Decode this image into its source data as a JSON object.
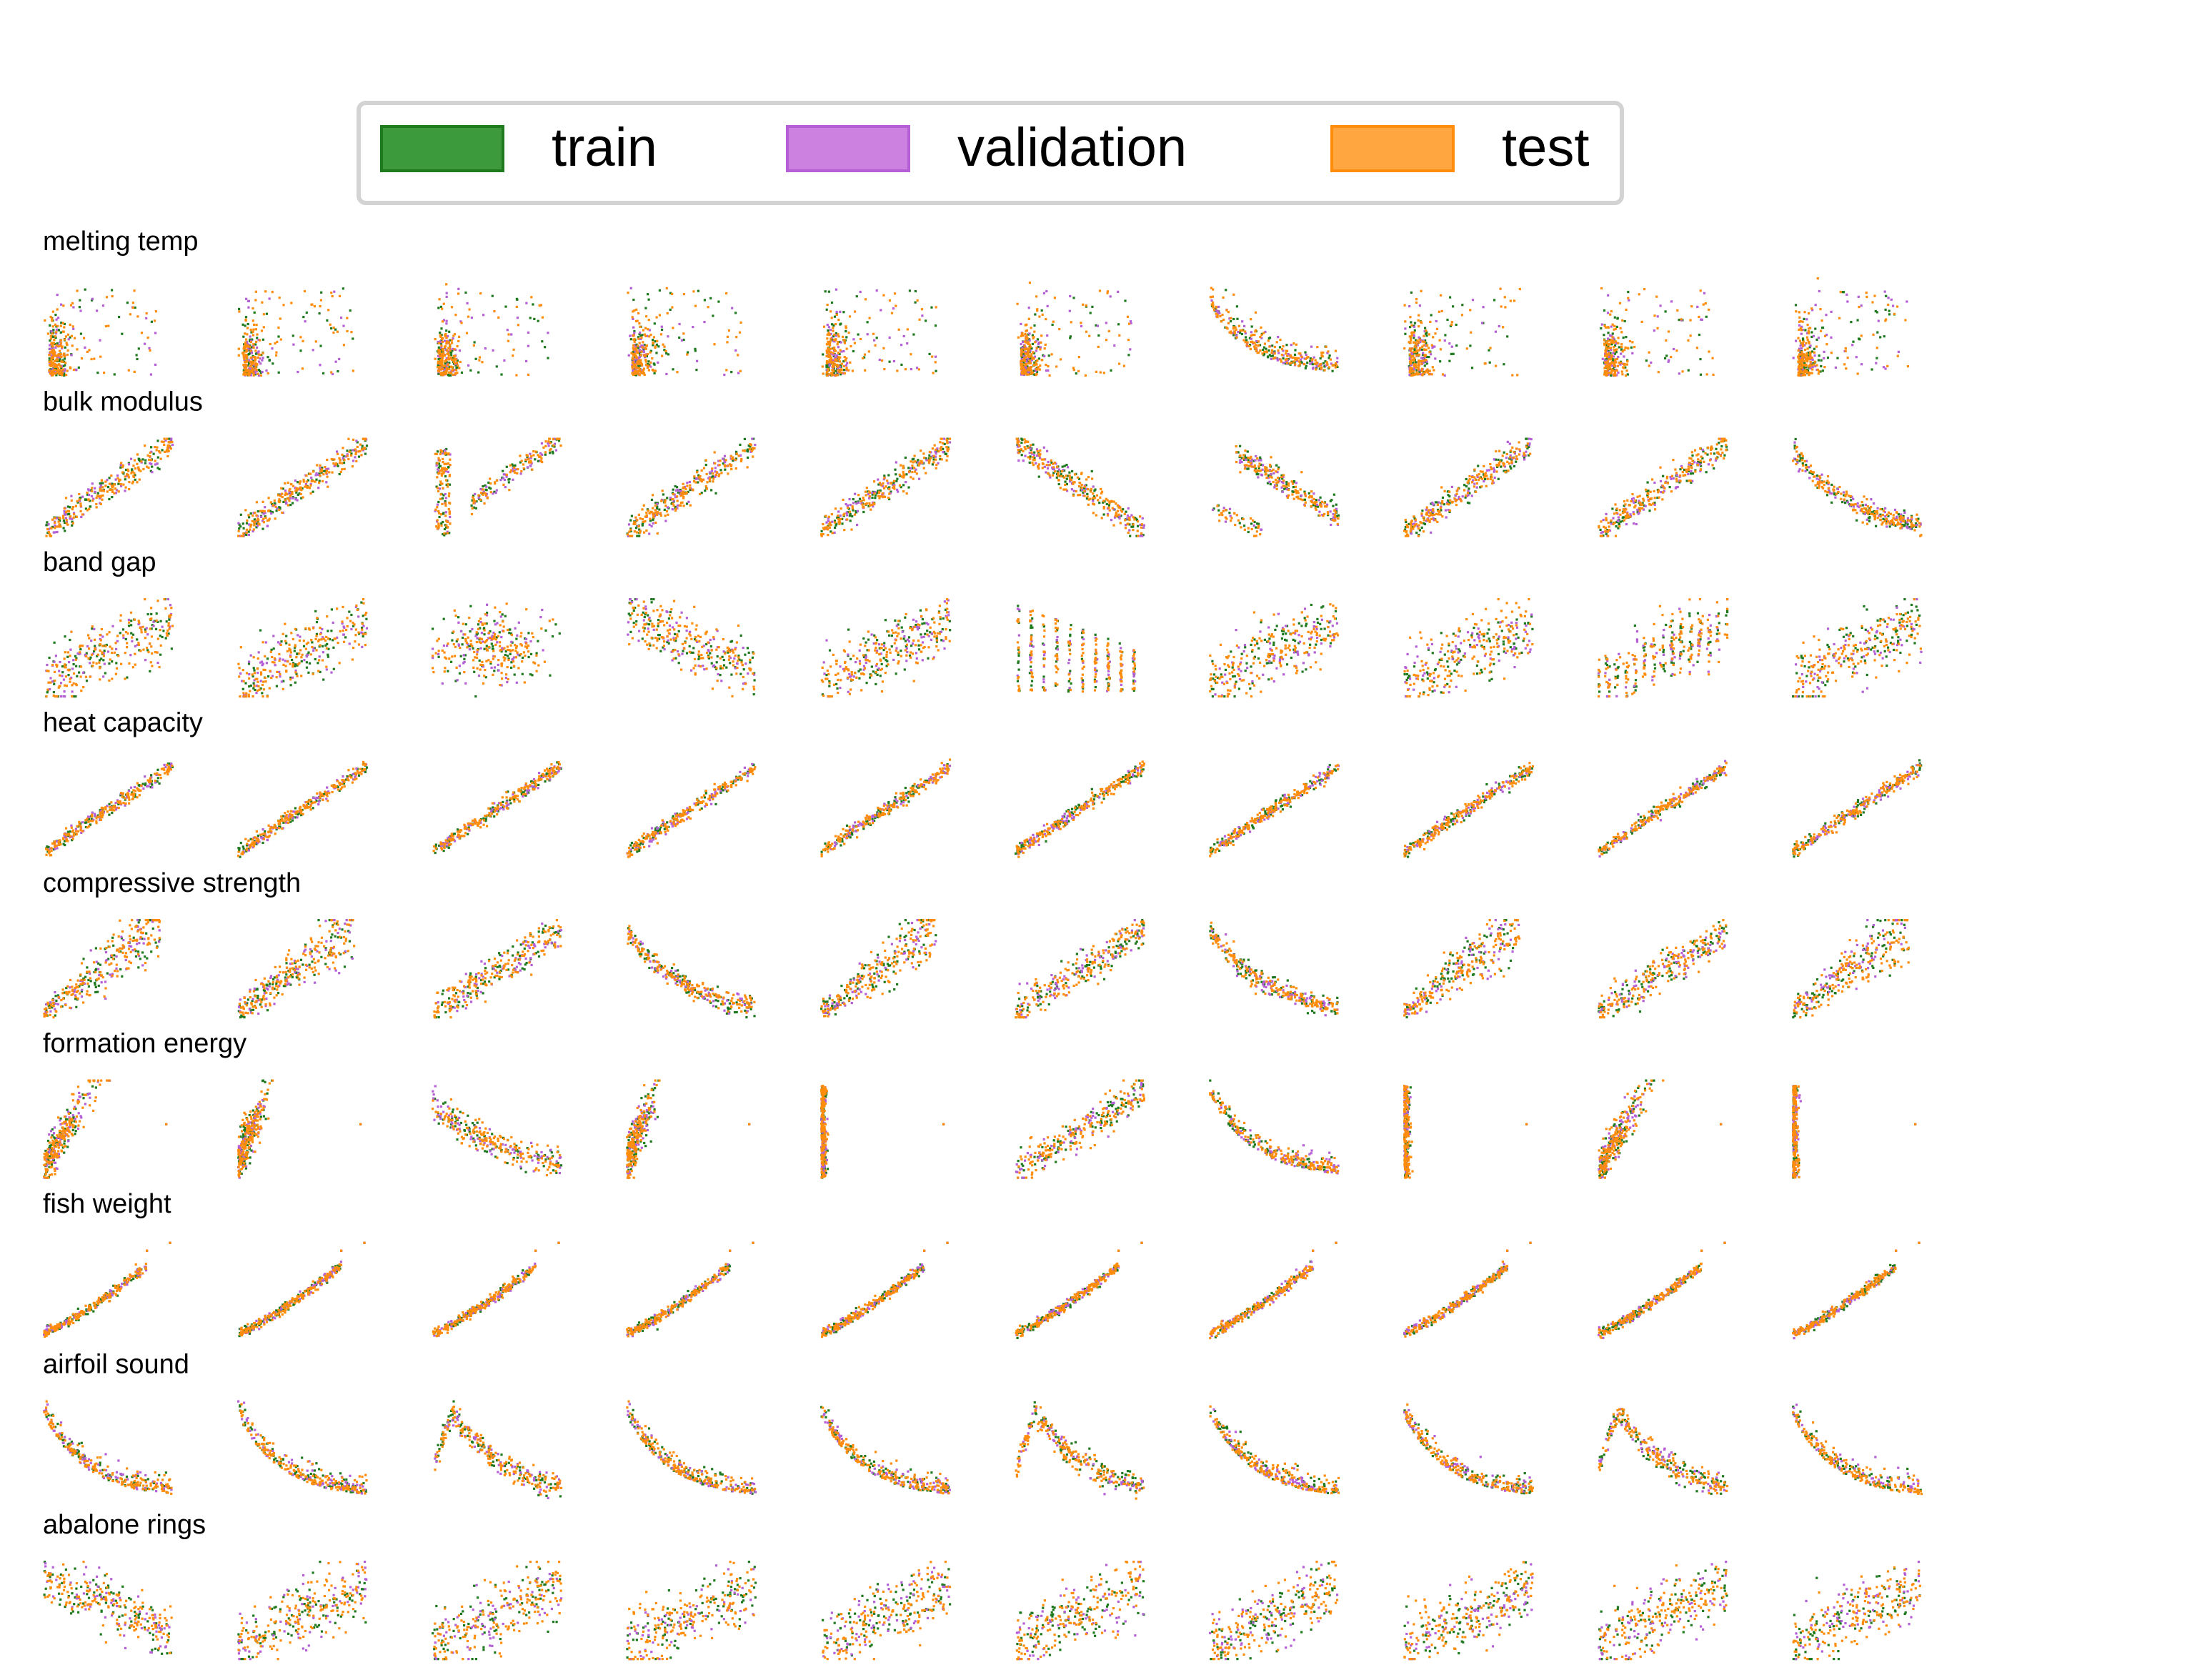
{
  "chart_data": {
    "type": "scatter",
    "layout": "grid of 9 rows x 10 columns of small scatter plots, axes hidden",
    "legend": {
      "placement": "top-center",
      "entries": [
        {
          "label": "train",
          "color": "#2e8b2e"
        },
        {
          "label": "validation",
          "color": "#c878dc"
        },
        {
          "label": "test",
          "color": "#ff9a2a"
        }
      ]
    },
    "series_colors": {
      "train": "#1f7a1f",
      "validation": "#b45fd6",
      "test": "#ff8c0a"
    },
    "axes_visible": false,
    "grid": false,
    "panels_per_row": 10,
    "rows": [
      {
        "title": "melting temp",
        "shape_pattern": [
          "sparse_vertical_cluster",
          "sparse_vertical_cluster",
          "sparse_vertical_cluster",
          "sparse_vertical_cluster",
          "sparse_vertical_cluster",
          "sparse_vertical_cluster",
          "sparse_decay",
          "sparse_vertical_cluster",
          "sparse_vertical_cluster",
          "sparse_vertical_cluster"
        ]
      },
      {
        "title": "bulk modulus",
        "shape_pattern": [
          "linear_up",
          "linear_up",
          "two_strands_up",
          "linear_up",
          "linear_up",
          "linear_down",
          "linear_down_offset",
          "linear_up",
          "linear_up",
          "curve_down"
        ]
      },
      {
        "title": "band gap",
        "shape_pattern": [
          "cloud_up",
          "cloud_up",
          "cloud_flat",
          "cloud_down",
          "cloud_up",
          "vertical_bands",
          "cloud_up",
          "cloud_up",
          "cloud_up_bands",
          "cloud_up"
        ]
      },
      {
        "title": "heat capacity",
        "shape_pattern": [
          "tight_up",
          "tight_up",
          "tight_up",
          "tight_up",
          "tight_up",
          "tight_up",
          "tight_up",
          "tight_up",
          "tight_up",
          "tight_up"
        ]
      },
      {
        "title": "compressive strength",
        "shape_pattern": [
          "fan_up",
          "fan_up",
          "wide_up",
          "curve_down",
          "fan_up",
          "wide_up",
          "curve_down",
          "fan_up",
          "wide_up",
          "fan_up"
        ]
      },
      {
        "title": "formation energy",
        "shape_pattern": [
          "left_blob_up",
          "left_blob",
          "decay_wide",
          "left_blob",
          "left_line",
          "wide_up",
          "decay",
          "left_line",
          "left_blob_up",
          "left_line"
        ]
      },
      {
        "title": "fish weight",
        "shape_pattern": [
          "curve_up",
          "curve_up",
          "curve_up",
          "curve_up",
          "curve_up",
          "curve_up",
          "curve_up",
          "curve_up",
          "curve_up",
          "curve_up"
        ]
      },
      {
        "title": "airfoil sound",
        "shape_pattern": [
          "decay",
          "decay",
          "peak_decay",
          "decay",
          "decay",
          "peak_decay",
          "decay",
          "decay",
          "peak_decay",
          "decay"
        ]
      },
      {
        "title": "abalone rings",
        "shape_pattern": [
          "cloud_down",
          "cloud_up",
          "cloud_up",
          "cloud_up",
          "cloud_up",
          "cloud_up",
          "cloud_up",
          "cloud_up",
          "cloud_up",
          "cloud_up"
        ]
      }
    ]
  }
}
